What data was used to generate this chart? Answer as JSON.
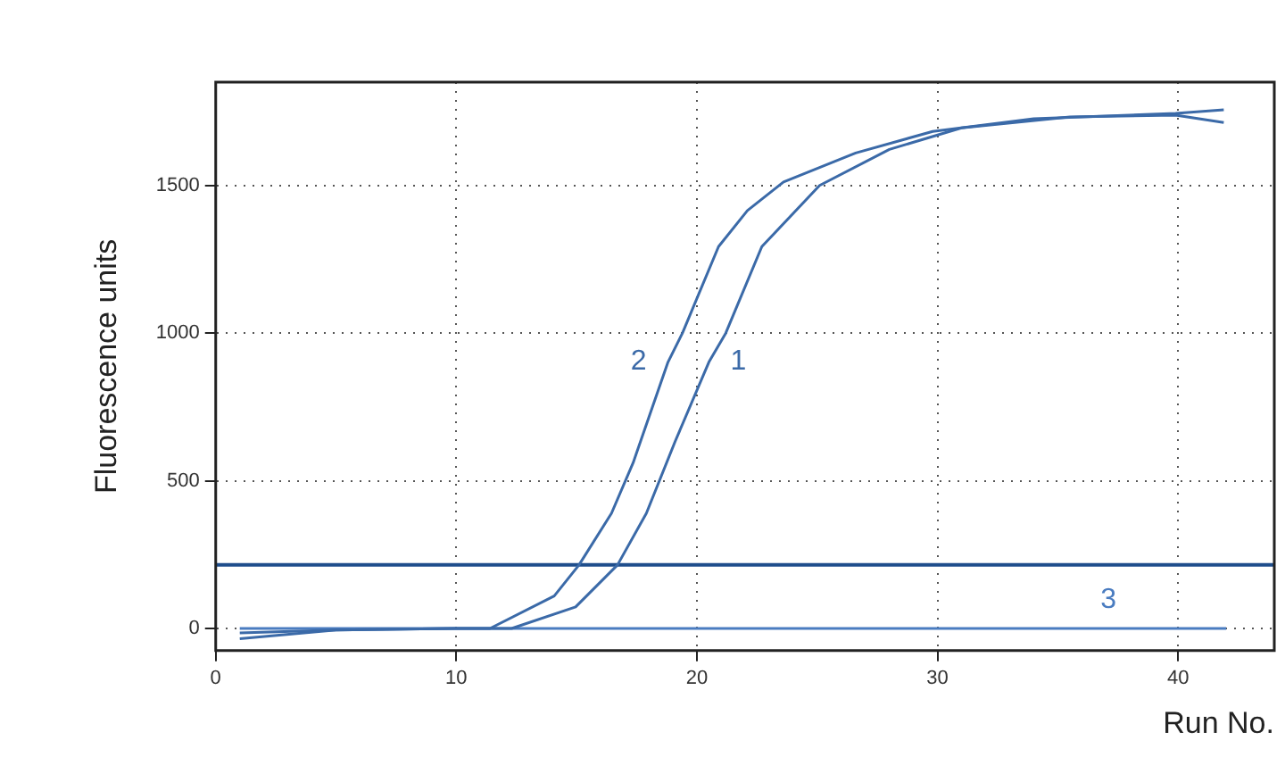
{
  "chart_data": {
    "type": "line",
    "xlabel": "Run No.",
    "ylabel": "Fluorescence units",
    "xlim": [
      0,
      44
    ],
    "xticks": [
      0,
      10,
      20,
      30,
      40
    ],
    "ylim": [
      -75,
      1850
    ],
    "yticks": [
      0,
      500,
      1000,
      1500
    ],
    "grid": true,
    "legend": false,
    "marker": "none",
    "line_style": "solid",
    "series": [
      {
        "name": "1",
        "color": "#3b6aa8",
        "x": [
          1,
          5,
          10,
          12.3,
          14.96,
          16.7,
          17.9,
          19.1,
          20.5,
          21.2,
          22.7,
          25.1,
          28,
          31,
          35.5,
          39.9,
          41.9
        ],
        "values": [
          -15,
          -5,
          0,
          0,
          73,
          215,
          390,
          634,
          902,
          1000,
          1293,
          1500,
          1622,
          1695,
          1732,
          1738,
          1713
        ]
      },
      {
        "name": "2",
        "color": "#3b6aa8",
        "x": [
          1,
          5,
          10,
          11.4,
          14.07,
          15.1,
          16.45,
          17.35,
          18.8,
          19.4,
          20.9,
          22.1,
          23.6,
          26.6,
          29.8,
          34,
          39.9,
          41.9
        ],
        "values": [
          -35,
          -5,
          0,
          0,
          110,
          215,
          390,
          561,
          902,
          1000,
          1293,
          1415,
          1512,
          1610,
          1683,
          1726,
          1744,
          1756
        ]
      },
      {
        "name": "3",
        "color": "#4a7cc0",
        "x": [
          1,
          42
        ],
        "values": [
          0,
          0
        ]
      }
    ],
    "ref_lines": [
      {
        "axis": "y",
        "value": 215,
        "color": "#1f4e8c"
      }
    ]
  }
}
